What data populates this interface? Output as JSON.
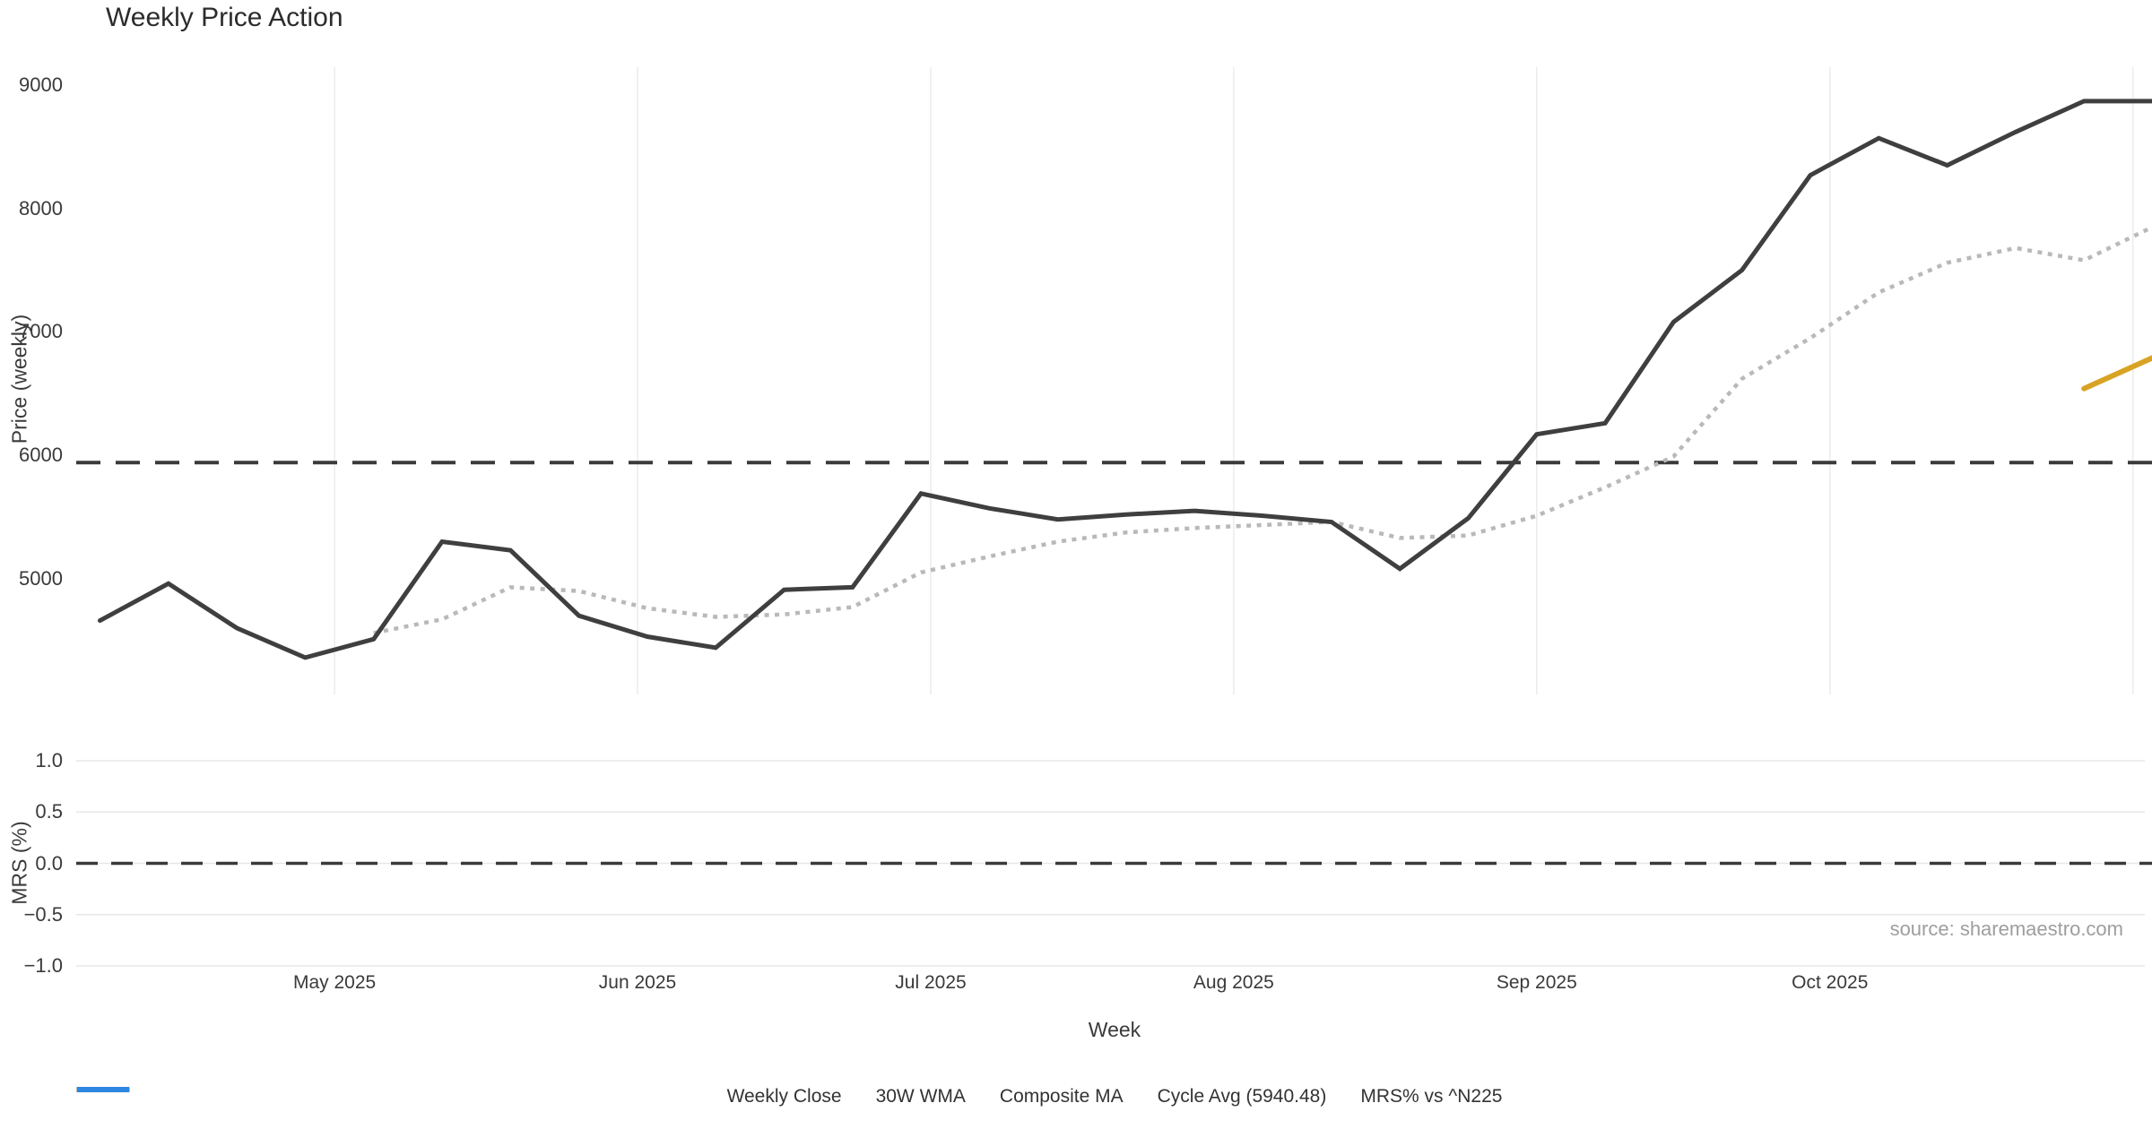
{
  "title": "Weekly Price Action",
  "source": "source: sharemaestro.com",
  "colors": {
    "weekly_close": "#3f3f3f",
    "wma_30w": "#d8a324",
    "composite_ma": "#b9b9b9",
    "cycle_avg": "#3a3a3a",
    "mrs": "#2d87e2",
    "gridline": "#ebebeb",
    "tick_text": "#3a3a3a",
    "source_text": "#9e9e9e"
  },
  "legend": {
    "position": "bottom-center",
    "items": [
      {
        "label": "Weekly Close",
        "style": "solid",
        "color": "#3f3f3f"
      },
      {
        "label": "30W WMA",
        "style": "solid",
        "color": "#d8a324"
      },
      {
        "label": "Composite MA",
        "style": "dotted",
        "color": "#b9b9b9"
      },
      {
        "label": "Cycle Avg (5940.48)",
        "style": "dashed",
        "color": "#3a3a3a"
      },
      {
        "label": "MRS% vs ^N225",
        "style": "solid",
        "color": "#2d87e2"
      }
    ]
  },
  "main_chart": {
    "y_axis": {
      "label": "Price (weekly)",
      "tick_labels": [
        "9000",
        "8000",
        "7000",
        "6000",
        "5000"
      ],
      "tick_values": [
        9000,
        8000,
        7000,
        6000,
        5000
      ]
    },
    "x_axis": {
      "label": "Week"
    }
  },
  "sub_chart": {
    "y_axis": {
      "label": "MRS (%)",
      "tick_labels": [
        "1.0",
        "0.5",
        "0.0",
        "−0.5",
        "−1.0"
      ],
      "tick_values": [
        1.0,
        0.5,
        0.0,
        -0.5,
        -1.0
      ]
    },
    "zero_line": {
      "value": 0.0,
      "style": "dashed"
    }
  },
  "chart_data": [
    {
      "type": "line",
      "panel": "price",
      "title": "Weekly Price Action",
      "xlabel": "Week",
      "ylabel": "Price (weekly)",
      "ylim": [
        4100,
        9150
      ],
      "grid": "vertical-months-only",
      "legend_position": "bottom-center",
      "x_ticks": [
        {
          "label": "May 2025",
          "date": "2025-05-01"
        },
        {
          "label": "Jun 2025",
          "date": "2025-06-01"
        },
        {
          "label": "Jul 2025",
          "date": "2025-07-01"
        },
        {
          "label": "Aug 2025",
          "date": "2025-08-01"
        },
        {
          "label": "Sep 2025",
          "date": "2025-09-01"
        },
        {
          "label": "Oct 2025",
          "date": "2025-10-01"
        },
        {
          "label": "",
          "date": "2025-11-01"
        }
      ],
      "x": [
        "2025-04-07",
        "2025-04-14",
        "2025-04-21",
        "2025-04-28",
        "2025-05-05",
        "2025-05-12",
        "2025-05-19",
        "2025-05-26",
        "2025-06-02",
        "2025-06-09",
        "2025-06-16",
        "2025-06-23",
        "2025-06-30",
        "2025-07-07",
        "2025-07-14",
        "2025-07-21",
        "2025-07-28",
        "2025-08-04",
        "2025-08-11",
        "2025-08-18",
        "2025-08-25",
        "2025-09-01",
        "2025-09-08",
        "2025-09-15",
        "2025-09-22",
        "2025-09-29",
        "2025-10-06",
        "2025-10-13",
        "2025-10-20",
        "2025-10-27",
        "2025-11-03"
      ],
      "series": [
        {
          "name": "Weekly Close",
          "style": "solid",
          "color": "#3f3f3f",
          "width": 5,
          "values": [
            4660,
            4960,
            4600,
            4360,
            4510,
            5300,
            5230,
            4700,
            4530,
            4440,
            4910,
            4930,
            5690,
            5570,
            5480,
            5520,
            5550,
            5510,
            5460,
            5080,
            5490,
            6170,
            6260,
            7080,
            7500,
            8270,
            8570,
            8350,
            8620,
            8870,
            8870
          ]
        },
        {
          "name": "Composite MA",
          "style": "dotted",
          "color": "#b9b9b9",
          "width": 4.5,
          "values": [
            null,
            null,
            null,
            null,
            4560,
            4670,
            4930,
            4900,
            4760,
            4690,
            4710,
            4770,
            5050,
            5180,
            5300,
            5375,
            5410,
            5435,
            5460,
            5330,
            5350,
            5510,
            5740,
            5990,
            6620,
            6950,
            7320,
            7560,
            7680,
            7580,
            7850
          ]
        },
        {
          "name": "30W WMA",
          "style": "solid",
          "color": "#d8a324",
          "width": 6,
          "values": [
            null,
            null,
            null,
            null,
            null,
            null,
            null,
            null,
            null,
            null,
            null,
            null,
            null,
            null,
            null,
            null,
            null,
            null,
            null,
            null,
            null,
            null,
            null,
            null,
            null,
            null,
            null,
            null,
            null,
            6540,
            6790
          ]
        }
      ],
      "reference_lines": [
        {
          "name": "Cycle Avg (5940.48)",
          "value": 5940.48,
          "style": "dashed",
          "color": "#3a3a3a",
          "width": 4
        }
      ]
    },
    {
      "type": "line",
      "panel": "mrs",
      "ylabel": "MRS (%)",
      "ylim": [
        -1.0,
        1.0
      ],
      "y_ticks": [
        1.0,
        0.5,
        0.0,
        -0.5,
        -1.0
      ],
      "grid": "horizontal",
      "series": [
        {
          "name": "MRS% vs ^N225",
          "style": "solid",
          "color": "#2d87e2",
          "visible": false,
          "values": []
        }
      ],
      "reference_lines": [
        {
          "name": "zero",
          "value": 0.0,
          "style": "dashed",
          "color": "#3a3a3a",
          "width": 3.5
        }
      ]
    }
  ]
}
